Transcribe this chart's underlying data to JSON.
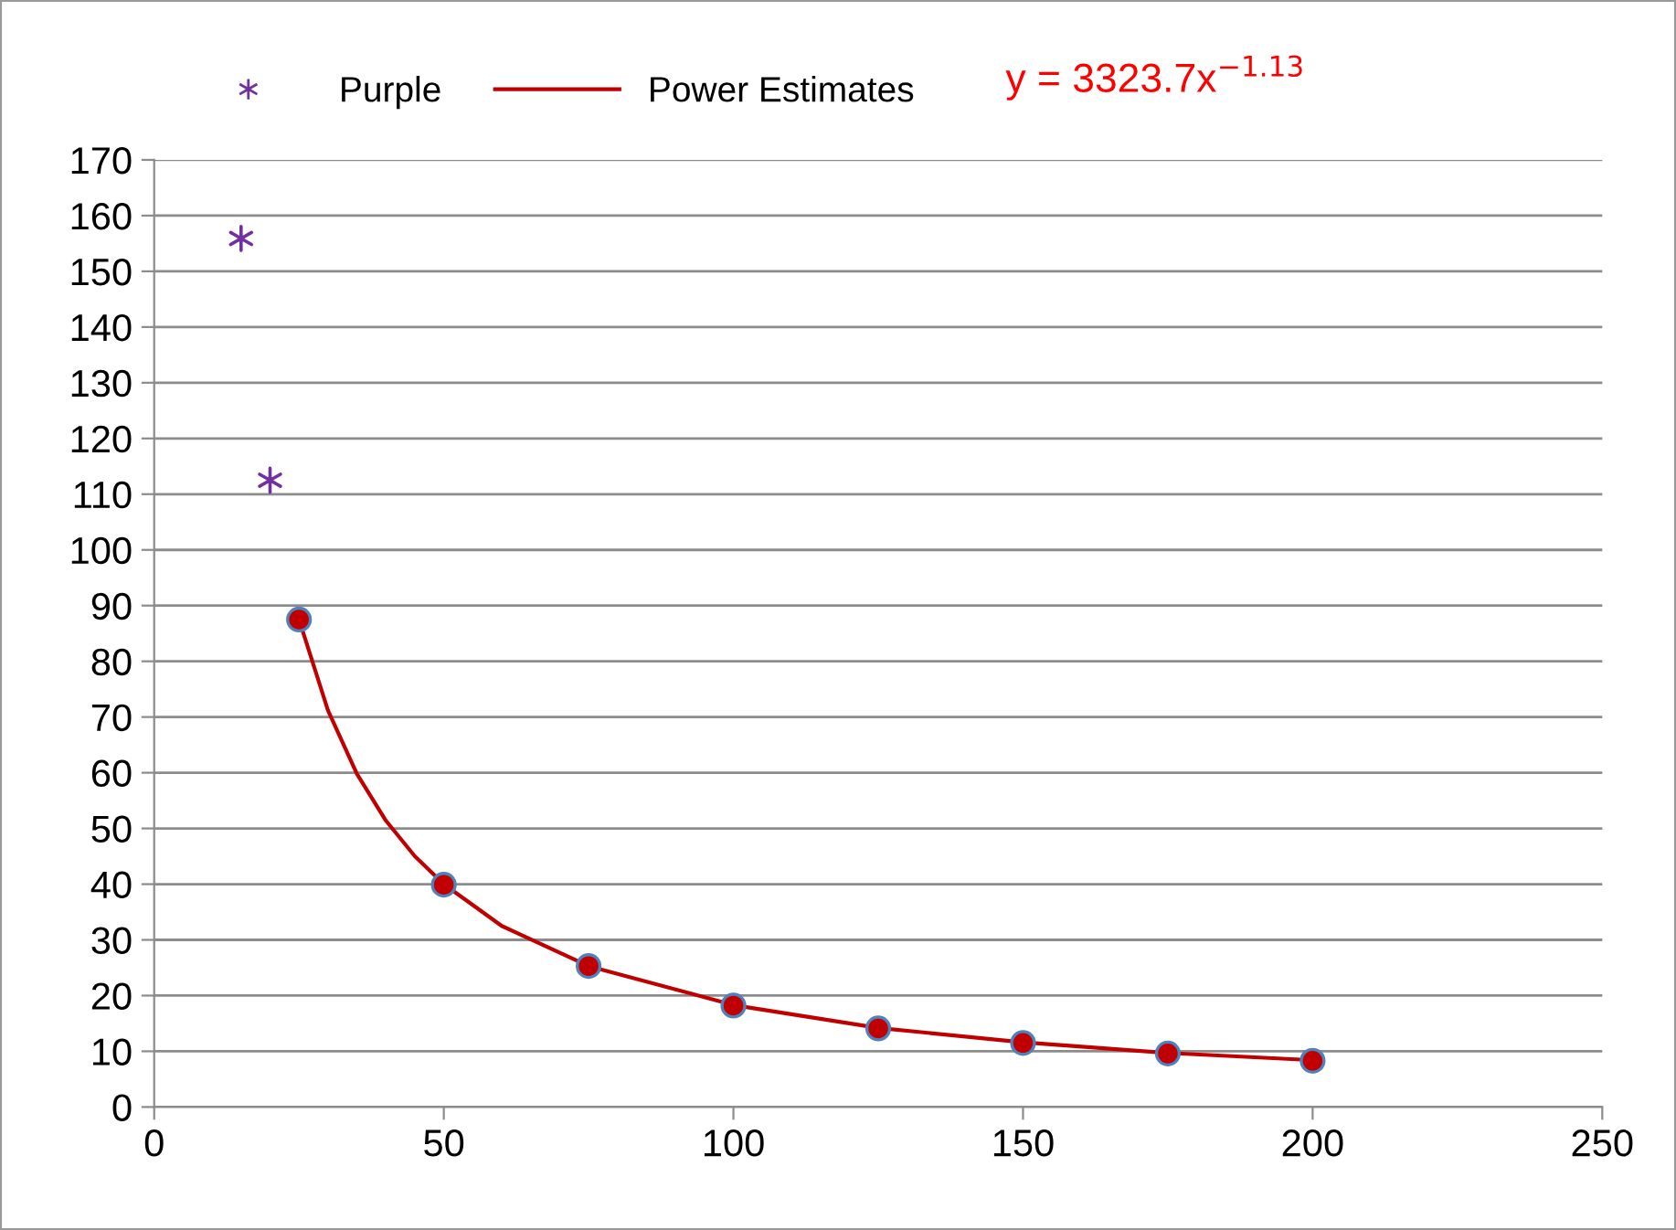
{
  "chart_data": {
    "type": "scatter",
    "series": [
      {
        "name": "Purple",
        "color": "#7030a0",
        "marker": "cross",
        "x": [
          15,
          20
        ],
        "values": [
          155.9,
          112.5
        ]
      },
      {
        "color": "#c00000",
        "marker": "circle",
        "x": [
          25,
          50,
          75,
          100,
          125,
          150,
          175,
          200
        ],
        "values": [
          87.5,
          39.9,
          25.3,
          18.2,
          14.1,
          11.5,
          9.6,
          8.3
        ]
      },
      {
        "name": "Power Estimates",
        "type": "line",
        "color": "#c00000",
        "marker": "none",
        "x": [
          25,
          30,
          35,
          40,
          45,
          50,
          60,
          75,
          100,
          125,
          150,
          175,
          200
        ],
        "values": [
          87.5,
          71.2,
          59.8,
          51.4,
          45.0,
          40.0,
          32.5,
          25.3,
          18.3,
          14.2,
          11.6,
          9.7,
          8.4
        ]
      }
    ],
    "annotations": [
      "y = 3323.7x$^{−1.13}$"
    ],
    "xlim": [
      0,
      250
    ],
    "xticks": [
      0,
      50,
      100,
      150,
      200,
      250
    ],
    "ylim": [
      0,
      170
    ],
    "yticks": [
      0,
      10,
      20,
      30,
      40,
      50,
      60,
      70,
      80,
      90,
      100,
      110,
      120,
      130,
      140,
      150,
      160,
      170
    ],
    "grid": "y",
    "legend": "top"
  }
}
